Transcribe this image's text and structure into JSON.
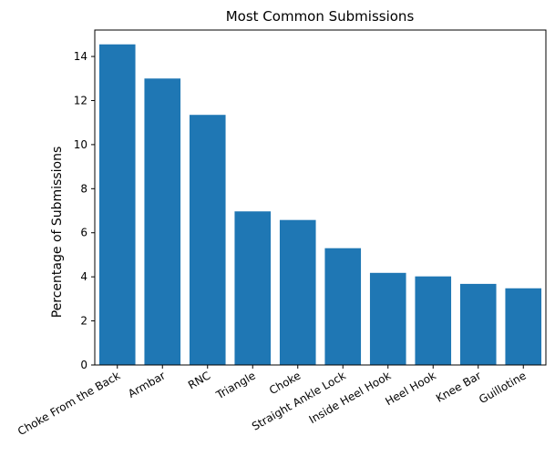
{
  "chart_data": {
    "type": "bar",
    "title": "Most Common Submissions",
    "xlabel": "",
    "ylabel": "Percentage of Submissions",
    "categories": [
      "Choke From the Back",
      "Armbar",
      "RNC",
      "Triangle",
      "Choke",
      "Straight Ankle Lock",
      "Inside Heel Hook",
      "Heel Hook",
      "Knee Bar",
      "Guillotine"
    ],
    "values": [
      14.55,
      13.0,
      11.35,
      6.97,
      6.58,
      5.3,
      4.18,
      4.02,
      3.68,
      3.48
    ],
    "ylim": [
      0,
      15.2
    ],
    "yticks": [
      0,
      2,
      4,
      6,
      8,
      10,
      12,
      14
    ],
    "bar_color": "#1f77b4",
    "grid": false,
    "legend": null
  }
}
